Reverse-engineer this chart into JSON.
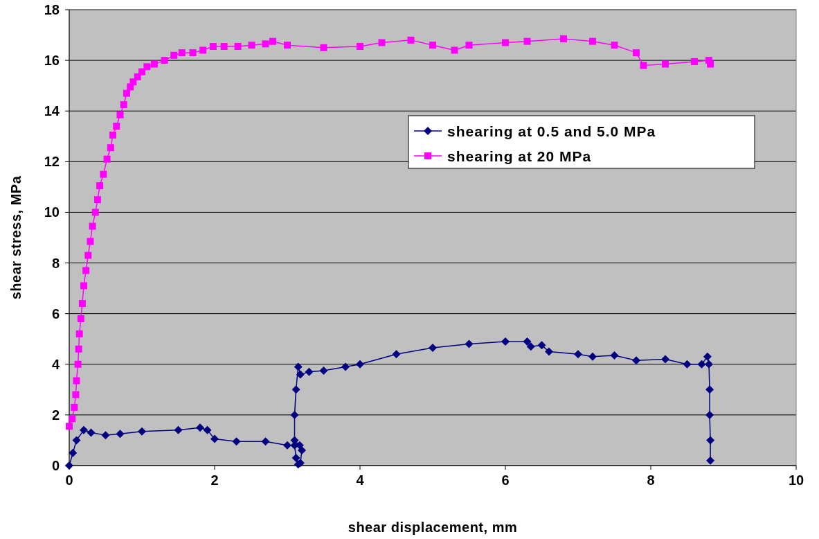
{
  "chart_data": {
    "type": "line",
    "xlabel": "shear displacement, mm",
    "ylabel": "shear stress, MPa",
    "xlim": [
      0,
      10
    ],
    "xticks": [
      0,
      2,
      4,
      6,
      8,
      10
    ],
    "ylim": [
      0,
      18
    ],
    "yticks": [
      0,
      2,
      4,
      6,
      8,
      10,
      12,
      14,
      16,
      18
    ],
    "grid": "y",
    "legend": "right",
    "series": [
      {
        "name": "shearing at 0.5 and 5.0 MPa",
        "color": "#000080",
        "marker": "diamond",
        "x": [
          0,
          0.05,
          0.1,
          0.2,
          0.3,
          0.5,
          0.7,
          1.0,
          1.5,
          1.8,
          1.9,
          2.0,
          2.3,
          2.7,
          3.0,
          3.1,
          3.12,
          3.15,
          3.18,
          3.2,
          3.17,
          3.1,
          3.1,
          3.12,
          3.15,
          3.18,
          3.3,
          3.5,
          3.8,
          4.0,
          4.5,
          5.0,
          5.5,
          6.0,
          6.3,
          6.35,
          6.5,
          6.6,
          7.0,
          7.2,
          7.5,
          7.8,
          8.2,
          8.5,
          8.7,
          8.78,
          8.8,
          8.81,
          8.81,
          8.82,
          8.82
        ],
        "values": [
          0,
          0.5,
          1.0,
          1.4,
          1.3,
          1.2,
          1.25,
          1.35,
          1.4,
          1.5,
          1.4,
          1.05,
          0.95,
          0.95,
          0.8,
          0.8,
          0.3,
          0.05,
          0.1,
          0.6,
          0.8,
          1.0,
          2.0,
          3.0,
          3.9,
          3.6,
          3.7,
          3.75,
          3.9,
          4.0,
          4.4,
          4.65,
          4.8,
          4.9,
          4.9,
          4.7,
          4.75,
          4.5,
          4.4,
          4.3,
          4.35,
          4.15,
          4.2,
          4.0,
          4.0,
          4.3,
          4.0,
          3.0,
          2.0,
          1.0,
          0.2
        ]
      },
      {
        "name": "shearing at 20 MPa",
        "color": "#ff00ff",
        "marker": "square",
        "x": [
          0,
          0.04,
          0.07,
          0.09,
          0.1,
          0.12,
          0.13,
          0.14,
          0.16,
          0.18,
          0.2,
          0.23,
          0.26,
          0.29,
          0.32,
          0.36,
          0.39,
          0.42,
          0.47,
          0.52,
          0.57,
          0.6,
          0.65,
          0.7,
          0.75,
          0.79,
          0.84,
          0.88,
          0.94,
          1.0,
          1.07,
          1.17,
          1.31,
          1.44,
          1.55,
          1.7,
          1.84,
          1.98,
          2.13,
          2.32,
          2.51,
          2.7,
          2.8,
          3.0,
          3.5,
          4.0,
          4.3,
          4.7,
          5.0,
          5.3,
          5.5,
          6.0,
          6.3,
          6.8,
          7.2,
          7.5,
          7.8,
          7.9,
          8.2,
          8.6,
          8.8,
          8.82
        ],
        "values": [
          1.55,
          1.85,
          2.3,
          2.8,
          3.35,
          4.0,
          4.6,
          5.2,
          5.8,
          6.4,
          7.1,
          7.7,
          8.3,
          8.85,
          9.45,
          10.0,
          10.5,
          11.05,
          11.5,
          12.1,
          12.55,
          13.05,
          13.4,
          13.85,
          14.25,
          14.7,
          14.95,
          15.15,
          15.35,
          15.55,
          15.75,
          15.85,
          16.0,
          16.2,
          16.3,
          16.3,
          16.4,
          16.55,
          16.55,
          16.55,
          16.6,
          16.65,
          16.75,
          16.6,
          16.5,
          16.55,
          16.7,
          16.8,
          16.6,
          16.4,
          16.6,
          16.7,
          16.75,
          16.85,
          16.75,
          16.6,
          16.3,
          15.8,
          15.85,
          15.95,
          16.0,
          15.85
        ]
      }
    ]
  }
}
